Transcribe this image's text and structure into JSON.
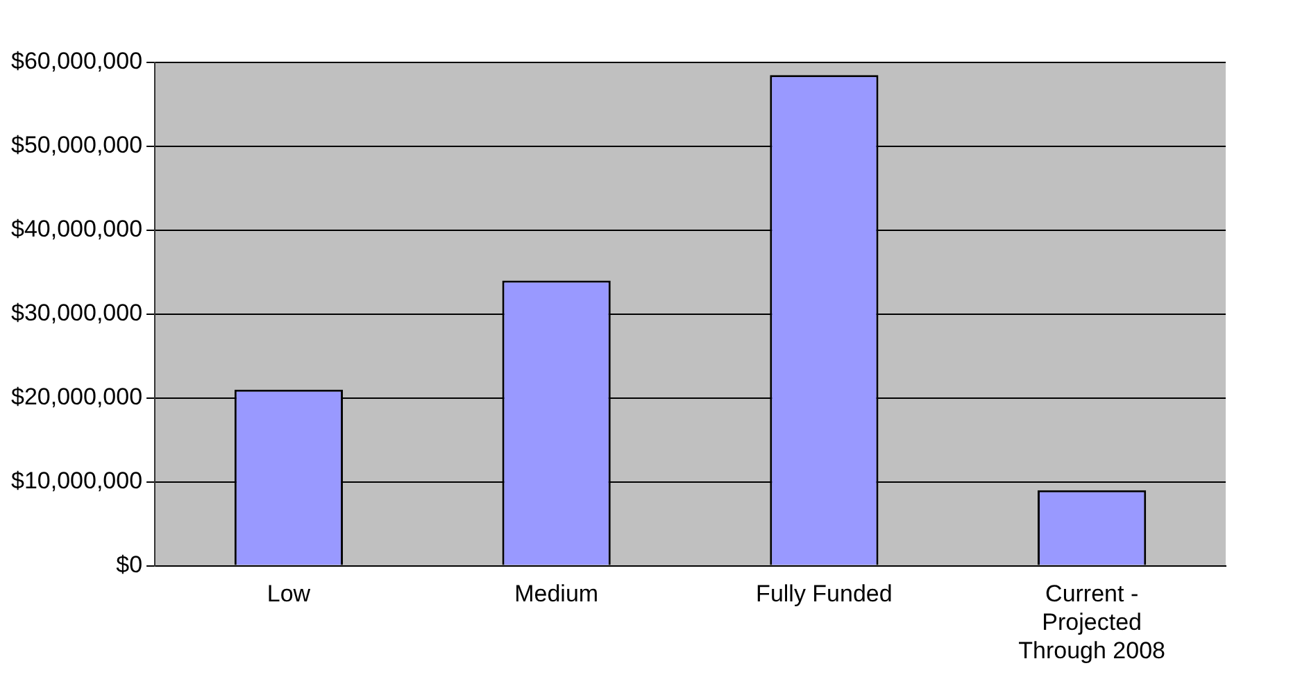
{
  "chart_data": {
    "type": "bar",
    "categories": [
      "Low",
      "Medium",
      "Fully Funded",
      "Current - Projected Through 2008"
    ],
    "values": [
      21000000,
      34000000,
      58500000,
      9000000
    ],
    "color": "#9999ff",
    "ylim": [
      0,
      60000000
    ],
    "yticks": [
      {
        "value": 0,
        "label": "$0"
      },
      {
        "value": 10000000,
        "label": "$10,000,000"
      },
      {
        "value": 20000000,
        "label": "$20,000,000"
      },
      {
        "value": 30000000,
        "label": "$30,000,000"
      },
      {
        "value": 40000000,
        "label": "$40,000,000"
      },
      {
        "value": 50000000,
        "label": "$50,000,000"
      },
      {
        "value": 60000000,
        "label": "$60,000,000"
      }
    ],
    "grid": "y",
    "legend": false
  }
}
